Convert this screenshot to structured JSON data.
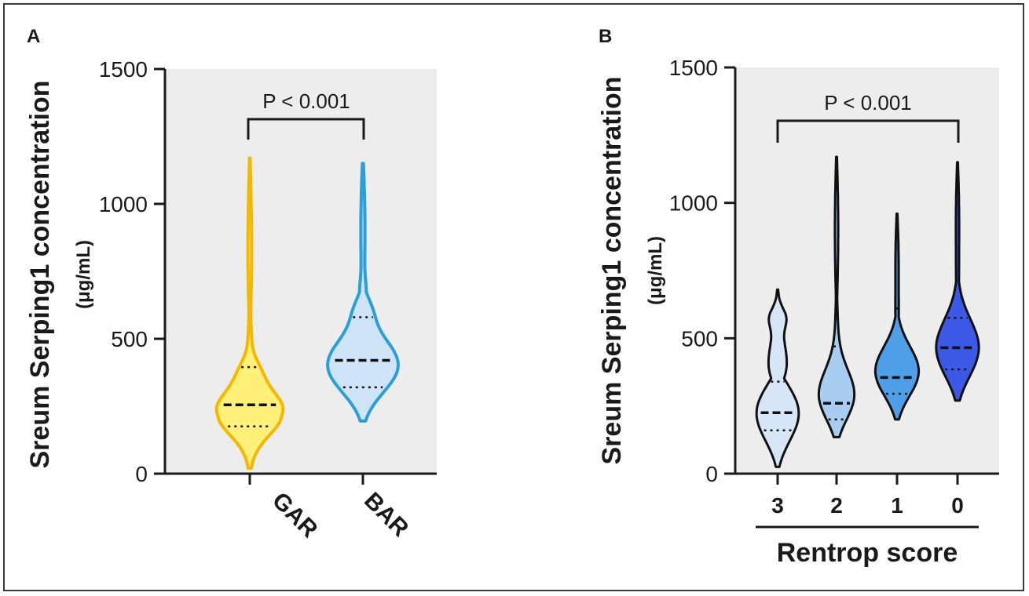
{
  "chart_data": [
    {
      "type": "violin",
      "panel": "A",
      "ylabel": "Sreum Serping1 concentration",
      "yunit": "(μg/mL)",
      "ylim": [
        0,
        1500
      ],
      "yticks": [
        "0",
        "500",
        "1000",
        "1500"
      ],
      "xlabel": "",
      "categories": [
        "GAR",
        "BAR"
      ],
      "series": [
        {
          "name": "GAR",
          "color": "#f5b800",
          "fill": "#fff07a",
          "min": 20,
          "max": 1170,
          "q1": 175,
          "median": 255,
          "q3": 395
        },
        {
          "name": "BAR",
          "color": "#2b9fd8",
          "fill": "#cfe4f6",
          "min": 195,
          "max": 1150,
          "q1": 320,
          "median": 420,
          "q3": 580
        }
      ],
      "annotation": {
        "text": "P < 0.001",
        "from": "GAR",
        "to": "BAR"
      }
    },
    {
      "type": "violin",
      "panel": "B",
      "ylabel": "Sreum Serping1 concentration",
      "yunit": "(μg/mL)",
      "ylim": [
        0,
        1500
      ],
      "yticks": [
        "0",
        "500",
        "1000",
        "1500"
      ],
      "xlabel": "Rentrop score",
      "categories": [
        "3",
        "2",
        "1",
        "0"
      ],
      "series": [
        {
          "name": "3",
          "color": "#111111",
          "fill": "#d6e6f7",
          "min": 25,
          "max": 680,
          "q1": 160,
          "median": 225,
          "q3": 340
        },
        {
          "name": "2",
          "color": "#111111",
          "fill": "#a9cdf0",
          "min": 135,
          "max": 1170,
          "q1": 200,
          "median": 260,
          "q3": 470
        },
        {
          "name": "1",
          "color": "#111111",
          "fill": "#4f9fe8",
          "min": 200,
          "max": 960,
          "q1": 295,
          "median": 355,
          "q3": 610
        },
        {
          "name": "0",
          "color": "#111111",
          "fill": "#3c58e6",
          "min": 270,
          "max": 1150,
          "q1": 385,
          "median": 465,
          "q3": 575
        }
      ],
      "annotation": {
        "text": "P < 0.001",
        "from": "3",
        "to": "0"
      }
    }
  ]
}
